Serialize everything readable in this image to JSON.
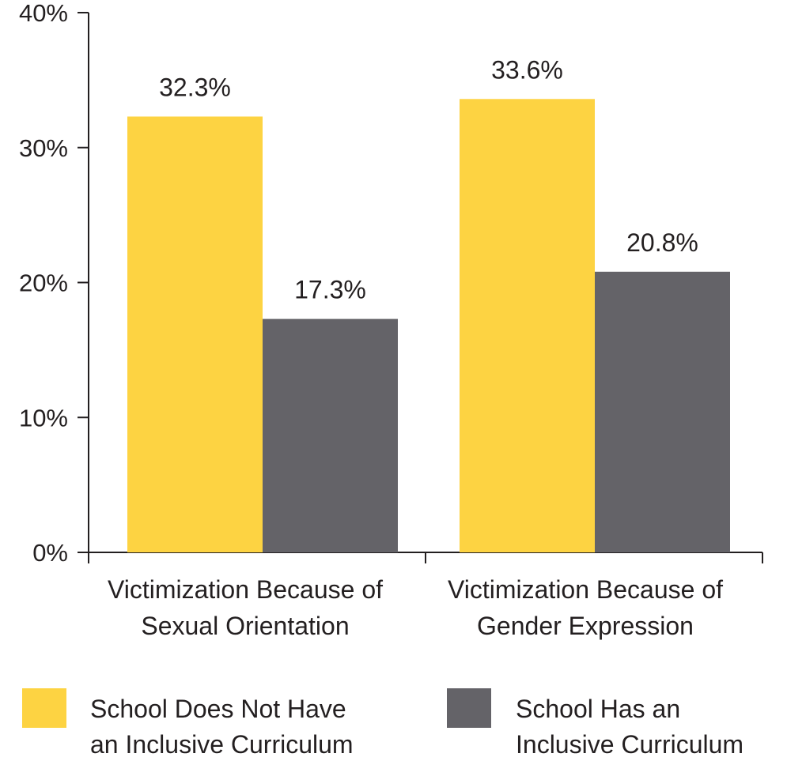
{
  "chart_data": {
    "type": "bar",
    "categories": [
      [
        "Victimization Because of",
        "Sexual Orientation"
      ],
      [
        "Victimization Because of",
        "Gender Expression"
      ]
    ],
    "series": [
      {
        "name": "School Does Not Have an Inclusive Curriculum",
        "legend_lines": [
          "School Does Not Have",
          "an Inclusive Curriculum"
        ],
        "values": [
          32.3,
          33.6
        ],
        "labels": [
          "32.3%",
          "33.6%"
        ],
        "color": "#fdd342"
      },
      {
        "name": "School Has an Inclusive Curriculum",
        "legend_lines": [
          "School Has an",
          "Inclusive Curriculum"
        ],
        "values": [
          17.3,
          20.8
        ],
        "labels": [
          "17.3%",
          "20.8%"
        ],
        "color": "#646368"
      }
    ],
    "ylim": [
      0,
      40
    ],
    "yticks": [
      0,
      10,
      20,
      30,
      40
    ],
    "ytick_labels": [
      "0%",
      "10%",
      "20%",
      "30%",
      "40%"
    ],
    "title": "",
    "xlabel": "",
    "ylabel": "",
    "grid": false,
    "legend_position": "bottom",
    "axis_color": "#231f20"
  }
}
